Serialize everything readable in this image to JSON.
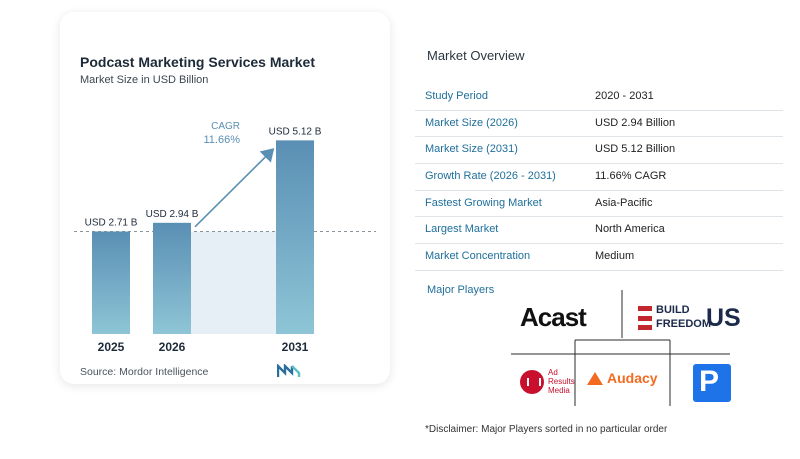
{
  "chart": {
    "title": "Podcast Marketing Services Market",
    "subtitle": "Market Size in USD Billion",
    "source": "Source: Mordor Intelligence",
    "cagr_label": "CAGR",
    "cagr_value": "11.66%"
  },
  "chart_data": {
    "type": "bar",
    "title": "Podcast Marketing Services Market",
    "subtitle": "Market Size in USD Billion",
    "categories": [
      "2025",
      "2026",
      "2031"
    ],
    "values": [
      2.71,
      2.94,
      5.12
    ],
    "data_labels": [
      "USD 2.71 B",
      "USD 2.94 B",
      "USD 5.12 B"
    ],
    "annotation": {
      "label": "CAGR",
      "value": "11.66%"
    },
    "ylim": [
      0,
      5.5
    ],
    "grid": false,
    "colors": {
      "bar_top": "#5a8fb4",
      "bar_bottom": "#8ec5d6",
      "band": "#e6eff5",
      "arrow": "#5a8fb4"
    }
  },
  "overview": {
    "title": "Market Overview",
    "rows": [
      {
        "label": "Study Period",
        "value": "2020 - 2031"
      },
      {
        "label": "Market Size (2026)",
        "value": "USD 2.94 Billion"
      },
      {
        "label": "Market Size (2031)",
        "value": "USD 5.12 Billion"
      },
      {
        "label": "Growth Rate (2026 - 2031)",
        "value": "11.66% CAGR"
      },
      {
        "label": "Fastest Growing Market",
        "value": "Asia-Pacific"
      },
      {
        "label": "Largest Market",
        "value": "North America"
      },
      {
        "label": "Market Concentration",
        "value": "Medium"
      }
    ],
    "major_players_title": "Major Players",
    "players": {
      "acast": "Acast",
      "bfu_line1": "BUILD",
      "bfu_line2": "FREEDOM",
      "bfu_us": "US",
      "arm_line1": "Ad",
      "arm_line2": "Results",
      "arm_line3": "Media",
      "audacy": "Audacy",
      "pcast": "P"
    },
    "disclaimer": "*Disclaimer: Major Players sorted in no particular order"
  }
}
